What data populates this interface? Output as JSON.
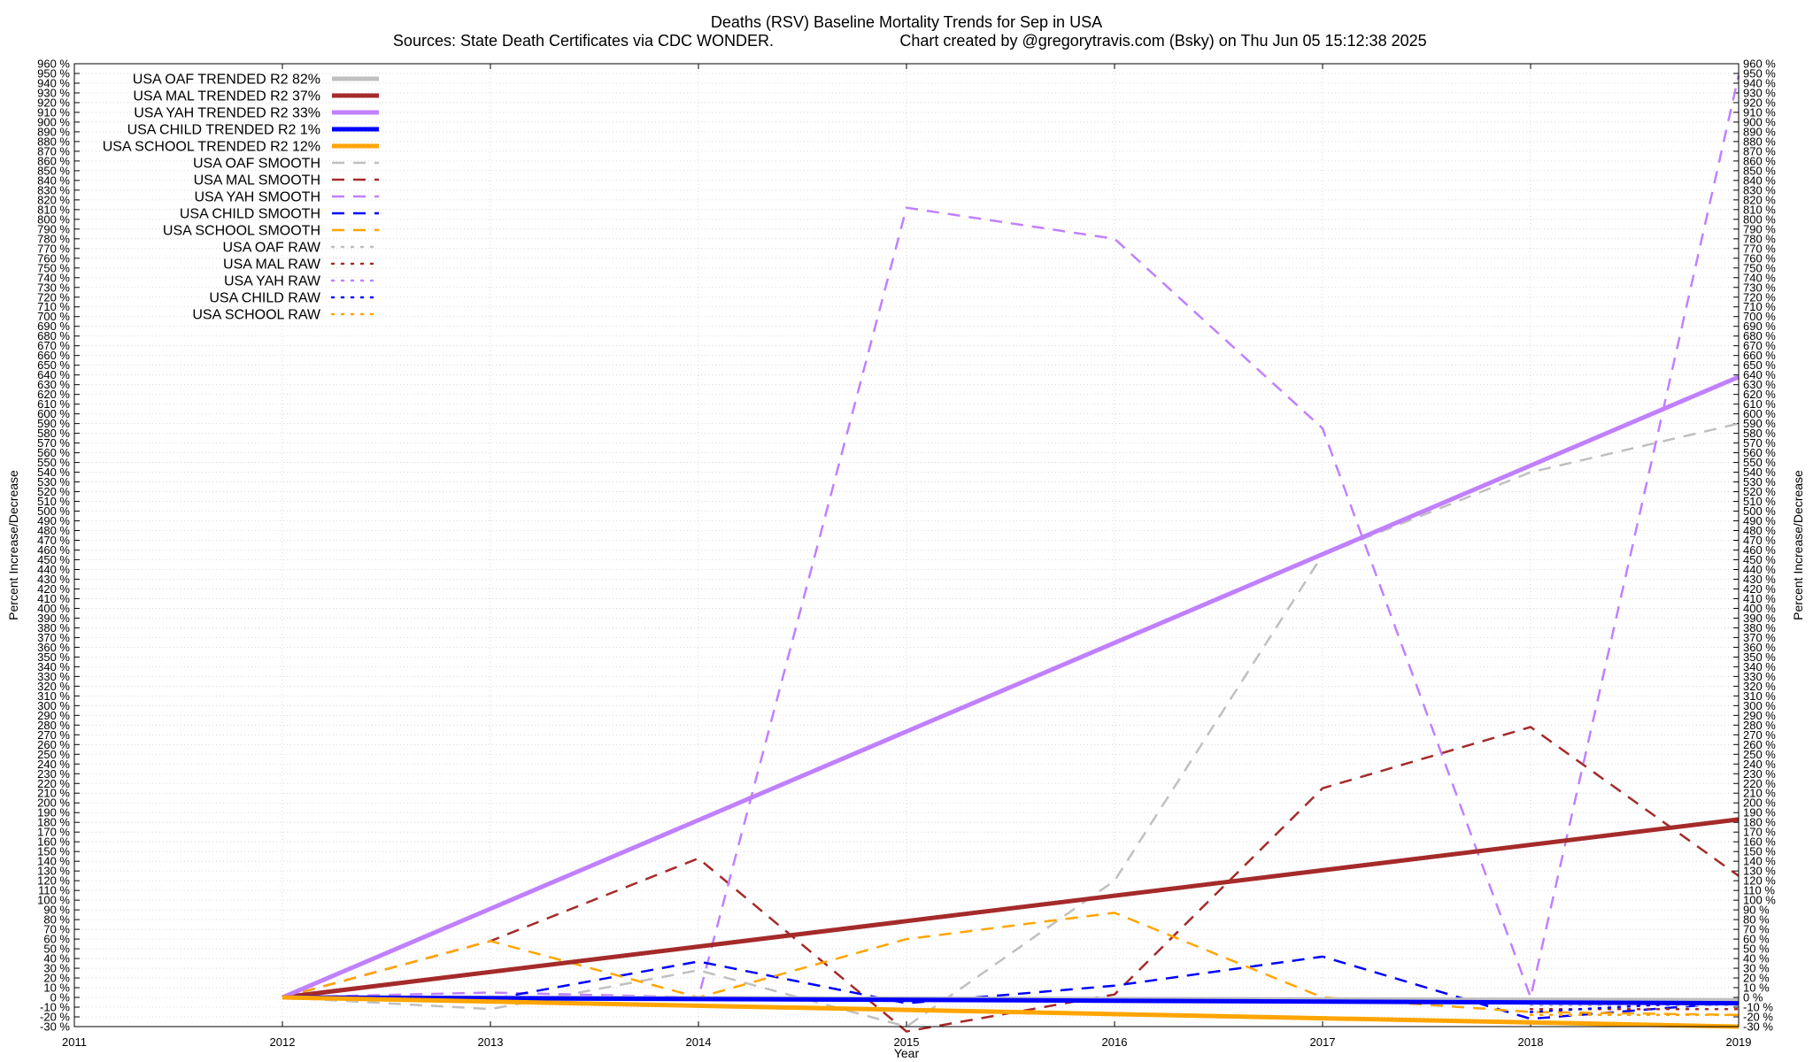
{
  "chart_data": {
    "type": "line",
    "title": "Deaths (RSV)  Baseline Mortality Trends for Sep in USA",
    "subtitle_left": "Sources: State Death Certificates via CDC WONDER.",
    "subtitle_right": "Chart created by @gregorytravis.com (Bsky) on Thu Jun 05 15:12:38 2025",
    "xlabel": "Year",
    "ylabel_left": "Percent Increase/Decrease",
    "ylabel_right": "Percent Increase/Decrease",
    "xlim": [
      2011,
      2019
    ],
    "ylim": [
      -30,
      960
    ],
    "x_ticks": [
      "2011",
      "2012",
      "2013",
      "2014",
      "2015",
      "2016",
      "2017",
      "2018",
      "2019"
    ],
    "y_tick_step": 10,
    "y_tick_suffix": " %",
    "grid": true,
    "legend_placement": "top-left",
    "series": [
      {
        "name": "USA OAF TRENDED R2  82%",
        "style": "solid",
        "color": "#c0c0c0",
        "width": 5,
        "x": [
          2012,
          2019
        ],
        "y": [
          0,
          -3
        ]
      },
      {
        "name": "USA MAL TRENDED R2  37%",
        "style": "solid",
        "color": "#a52a2a",
        "width": 5,
        "x": [
          2012,
          2019
        ],
        "y": [
          0,
          183
        ]
      },
      {
        "name": "USA YAH TRENDED R2  33%",
        "style": "solid",
        "color": "#c080ff",
        "width": 5,
        "x": [
          2012,
          2019
        ],
        "y": [
          0,
          638
        ]
      },
      {
        "name": "USA CHILD TRENDED R2   1%",
        "style": "solid",
        "color": "#0000ff",
        "width": 5,
        "x": [
          2012,
          2019
        ],
        "y": [
          0,
          -6
        ]
      },
      {
        "name": "USA SCHOOL TRENDED R2  12%",
        "style": "solid",
        "color": "#ffa500",
        "width": 5,
        "x": [
          2012,
          2019
        ],
        "y": [
          0,
          -30
        ]
      },
      {
        "name": "USA OAF SMOOTH",
        "style": "dashed",
        "color": "#c0c0c0",
        "width": 2.5,
        "x": [
          2012,
          2013,
          2014,
          2015,
          2016,
          2017,
          2018,
          2019
        ],
        "y": [
          0,
          -12,
          28,
          -30,
          120,
          455,
          540,
          590
        ]
      },
      {
        "name": "USA MAL SMOOTH",
        "style": "dashed",
        "color": "#a52a2a",
        "width": 2.5,
        "x": [
          2012,
          2013,
          2014,
          2015,
          2016,
          2017,
          2018,
          2019
        ],
        "y": [
          0,
          58,
          143,
          -35,
          3,
          215,
          278,
          125
        ]
      },
      {
        "name": "USA YAH SMOOTH",
        "style": "dashed",
        "color": "#c080ff",
        "width": 2.5,
        "x": [
          2012,
          2013,
          2014,
          2015,
          2016,
          2017,
          2018,
          2019
        ],
        "y": [
          0,
          5,
          0,
          812,
          780,
          585,
          0,
          948
        ]
      },
      {
        "name": "USA CHILD SMOOTH",
        "style": "dashed",
        "color": "#0000ff",
        "width": 2.5,
        "x": [
          2012,
          2013,
          2014,
          2015,
          2016,
          2017,
          2018,
          2019
        ],
        "y": [
          0,
          -2,
          37,
          -6,
          12,
          42,
          -22,
          -5
        ]
      },
      {
        "name": "USA SCHOOL SMOOTH",
        "style": "dashed",
        "color": "#ffa500",
        "width": 2.5,
        "x": [
          2012,
          2013,
          2014,
          2015,
          2016,
          2017,
          2018,
          2019
        ],
        "y": [
          0,
          58,
          0,
          60,
          87,
          0,
          -15,
          -18
        ]
      },
      {
        "name": "USA OAF RAW",
        "style": "dotted",
        "color": "#c0c0c0",
        "width": 2.5,
        "x": [
          2018,
          2019
        ],
        "y": [
          -8,
          -8
        ]
      },
      {
        "name": "USA MAL RAW",
        "style": "dotted",
        "color": "#a52a2a",
        "width": 2.5,
        "x": [
          2018,
          2019
        ],
        "y": [
          -12,
          -12
        ]
      },
      {
        "name": "USA YAH RAW",
        "style": "dotted",
        "color": "#c080ff",
        "width": 2.5,
        "x": [
          2018,
          2019
        ],
        "y": [
          -5,
          -5
        ]
      },
      {
        "name": "USA CHILD RAW",
        "style": "dotted",
        "color": "#0000ff",
        "width": 2.5,
        "x": [
          2018,
          2019
        ],
        "y": [
          -15,
          -3
        ]
      },
      {
        "name": "USA SCHOOL RAW",
        "style": "dotted",
        "color": "#ffa500",
        "width": 2.5,
        "x": [
          2018,
          2019
        ],
        "y": [
          -18,
          -18
        ]
      }
    ]
  }
}
